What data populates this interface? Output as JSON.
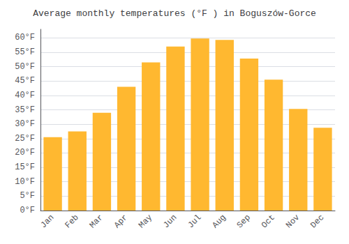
{
  "chart_data": {
    "type": "bar",
    "title": "Average monthly temperatures (°F ) in Boguszów-Gorce",
    "categories": [
      "Jan",
      "Feb",
      "Mar",
      "Apr",
      "May",
      "Jun",
      "Jul",
      "Aug",
      "Sep",
      "Oct",
      "Nov",
      "Dec"
    ],
    "values": [
      25.5,
      27.5,
      34.0,
      43.0,
      51.5,
      57.0,
      59.8,
      59.3,
      52.8,
      45.5,
      35.3,
      28.8
    ],
    "color": "#FFB830",
    "ylim": [
      0,
      63
    ],
    "yticks": [
      {
        "value": 0,
        "label": "0°F"
      },
      {
        "value": 5,
        "label": "5°F"
      },
      {
        "value": 10,
        "label": "10°F"
      },
      {
        "value": 15,
        "label": "15°F"
      },
      {
        "value": 20,
        "label": "20°F"
      },
      {
        "value": 25,
        "label": "25°F"
      },
      {
        "value": 30,
        "label": "30°F"
      },
      {
        "value": 35,
        "label": "35°F"
      },
      {
        "value": 40,
        "label": "40°F"
      },
      {
        "value": 45,
        "label": "45°F"
      },
      {
        "value": 50,
        "label": "50°F"
      },
      {
        "value": 55,
        "label": "55°F"
      },
      {
        "value": 60,
        "label": "60°F"
      }
    ],
    "grid": true
  }
}
